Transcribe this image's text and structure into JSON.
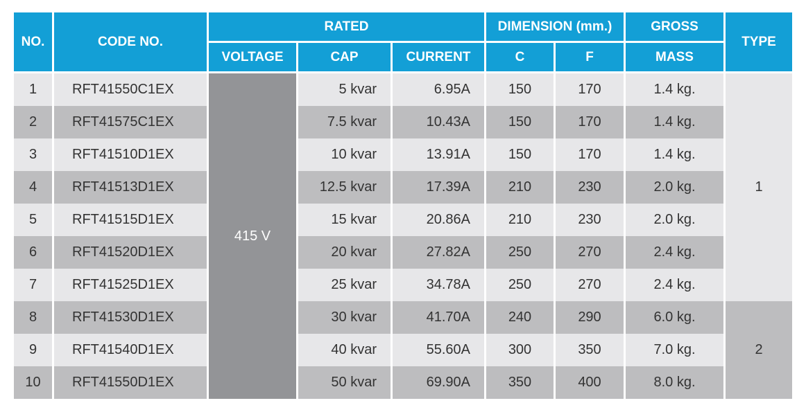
{
  "header": {
    "no": "NO.",
    "code": "CODE NO.",
    "rated": "RATED",
    "dimension": "DIMENSION (mm.)",
    "gross": "GROSS",
    "type": "TYPE",
    "voltage": "VOLTAGE",
    "cap": "CAP",
    "current": "CURRENT",
    "c": "C",
    "f": "F",
    "mass": "MASS"
  },
  "voltage": "415 V",
  "rows": [
    {
      "no": "1",
      "code": "RFT41550C1EX",
      "cap": "5 kvar",
      "current": "6.95A",
      "c": "150",
      "f": "170",
      "mass": "1.4 kg."
    },
    {
      "no": "2",
      "code": "RFT41575C1EX",
      "cap": "7.5 kvar",
      "current": "10.43A",
      "c": "150",
      "f": "170",
      "mass": "1.4 kg."
    },
    {
      "no": "3",
      "code": "RFT41510D1EX",
      "cap": "10 kvar",
      "current": "13.91A",
      "c": "150",
      "f": "170",
      "mass": "1.4 kg."
    },
    {
      "no": "4",
      "code": "RFT41513D1EX",
      "cap": "12.5 kvar",
      "current": "17.39A",
      "c": "210",
      "f": "230",
      "mass": "2.0 kg."
    },
    {
      "no": "5",
      "code": "RFT41515D1EX",
      "cap": "15 kvar",
      "current": "20.86A",
      "c": "210",
      "f": "230",
      "mass": "2.0 kg."
    },
    {
      "no": "6",
      "code": "RFT41520D1EX",
      "cap": "20 kvar",
      "current": "27.82A",
      "c": "250",
      "f": "270",
      "mass": "2.4 kg."
    },
    {
      "no": "7",
      "code": "RFT41525D1EX",
      "cap": "25 kvar",
      "current": "34.78A",
      "c": "250",
      "f": "270",
      "mass": "2.4 kg."
    },
    {
      "no": "8",
      "code": "RFT41530D1EX",
      "cap": "30 kvar",
      "current": "41.70A",
      "c": "240",
      "f": "290",
      "mass": "6.0 kg."
    },
    {
      "no": "9",
      "code": "RFT41540D1EX",
      "cap": "40 kvar",
      "current": "55.60A",
      "c": "300",
      "f": "350",
      "mass": "7.0 kg."
    },
    {
      "no": "10",
      "code": "RFT41550D1EX",
      "cap": "50 kvar",
      "current": "69.90A",
      "c": "350",
      "f": "400",
      "mass": "8.0 kg."
    }
  ],
  "types": [
    "1",
    "2"
  ]
}
